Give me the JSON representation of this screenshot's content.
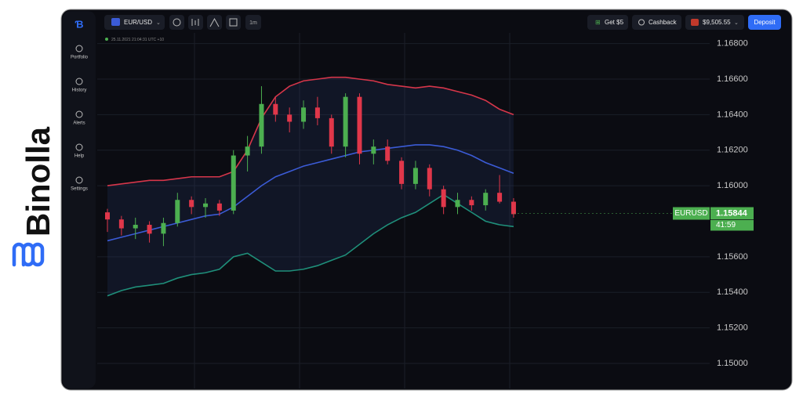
{
  "brand": "Binolla",
  "sidebar": [
    "Portfolio",
    "History",
    "Alerts",
    "Help",
    "Settings"
  ],
  "topbar": {
    "pair": "EUR/USD",
    "timeframe": "1m",
    "bonus": "Get $5",
    "cashback": "Cashback",
    "balance": "$9,505.55",
    "deposit": "Deposit"
  },
  "timestamp": "25.11.2021  21:04:31  UTC +10",
  "chart_data": {
    "type": "candlestick",
    "ylim": [
      1.1485,
      1.1686
    ],
    "yticks": [
      {
        "value": 1.168,
        "label": "1.16800"
      },
      {
        "value": 1.166,
        "label": "1.16600"
      },
      {
        "value": 1.164,
        "label": "1.16400"
      },
      {
        "value": 1.162,
        "label": "1.16200"
      },
      {
        "value": 1.16,
        "label": "1.16000"
      },
      {
        "value": 1.156,
        "label": "1.15600"
      },
      {
        "value": 1.154,
        "label": "1.15400"
      },
      {
        "value": 1.152,
        "label": "1.15200"
      },
      {
        "value": 1.15,
        "label": "1.15000"
      }
    ],
    "grid": true,
    "up_color": "#4caf50",
    "down_color": "#e0374a",
    "open": [
      1.1585,
      1.1581,
      1.1576,
      1.1578,
      1.1573,
      1.1579,
      1.1592,
      1.1588,
      1.159,
      1.1586,
      1.1617,
      1.1622,
      1.1646,
      1.164,
      1.1636,
      1.1644,
      1.1638,
      1.1622,
      1.165,
      1.1618,
      1.1622,
      1.1614,
      1.1601,
      1.161,
      1.1598,
      1.1588,
      1.1592,
      1.1589,
      1.1596,
      1.1591
    ],
    "high": [
      1.1587,
      1.1583,
      1.1582,
      1.158,
      1.1582,
      1.1596,
      1.1594,
      1.1593,
      1.1592,
      1.162,
      1.1628,
      1.1656,
      1.165,
      1.1644,
      1.1648,
      1.165,
      1.164,
      1.1652,
      1.1652,
      1.1626,
      1.1626,
      1.1616,
      1.1614,
      1.1612,
      1.16,
      1.1596,
      1.1594,
      1.1598,
      1.1606,
      1.1593
    ],
    "low": [
      1.1574,
      1.1572,
      1.157,
      1.1568,
      1.1566,
      1.1577,
      1.1584,
      1.1582,
      1.1583,
      1.1584,
      1.1608,
      1.1618,
      1.1636,
      1.163,
      1.1632,
      1.1634,
      1.1618,
      1.1616,
      1.1612,
      1.1612,
      1.1612,
      1.1598,
      1.1598,
      1.1594,
      1.1584,
      1.1584,
      1.1586,
      1.1586,
      1.159,
      1.1582
    ],
    "close": [
      1.1581,
      1.1576,
      1.1578,
      1.1573,
      1.1579,
      1.1592,
      1.1588,
      1.159,
      1.1586,
      1.1617,
      1.1622,
      1.1646,
      1.164,
      1.1636,
      1.1644,
      1.1638,
      1.1622,
      1.165,
      1.1618,
      1.1622,
      1.1614,
      1.1601,
      1.161,
      1.1598,
      1.1588,
      1.1592,
      1.1589,
      1.1596,
      1.1591,
      1.1584
    ],
    "series": [
      {
        "color": "#d6364a",
        "values": [
          1.16,
          1.1601,
          1.1602,
          1.1603,
          1.1603,
          1.1604,
          1.1605,
          1.1605,
          1.1605,
          1.1608,
          1.162,
          1.1638,
          1.165,
          1.1656,
          1.1659,
          1.166,
          1.1661,
          1.1661,
          1.166,
          1.1659,
          1.1657,
          1.1656,
          1.1655,
          1.1656,
          1.1655,
          1.1653,
          1.1651,
          1.1648,
          1.1643,
          1.164
        ]
      },
      {
        "color": "#3b5bd6",
        "values": [
          1.1569,
          1.1571,
          1.1573,
          1.1575,
          1.1577,
          1.1579,
          1.1581,
          1.1583,
          1.1584,
          1.1588,
          1.1594,
          1.16,
          1.1605,
          1.1608,
          1.1611,
          1.1613,
          1.1615,
          1.1617,
          1.1619,
          1.162,
          1.1621,
          1.1622,
          1.1623,
          1.1623,
          1.1622,
          1.162,
          1.1617,
          1.1613,
          1.161,
          1.1607
        ]
      },
      {
        "color": "#1f8f7a",
        "values": [
          1.1538,
          1.1541,
          1.1543,
          1.1544,
          1.1545,
          1.1548,
          1.155,
          1.1551,
          1.1553,
          1.156,
          1.1562,
          1.1557,
          1.1552,
          1.1552,
          1.1553,
          1.1555,
          1.1558,
          1.1561,
          1.1567,
          1.1573,
          1.1578,
          1.1582,
          1.1585,
          1.159,
          1.1595,
          1.159,
          1.1585,
          1.158,
          1.1578,
          1.1577
        ]
      }
    ],
    "price_tag": {
      "symbol": "EURUSD",
      "price": {
        "value": 1.15844,
        "label": "1.15844"
      },
      "timer": "41:59"
    }
  }
}
